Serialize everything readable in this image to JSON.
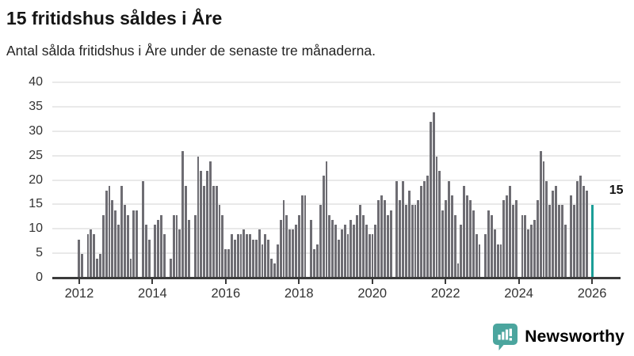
{
  "title": "15 fritidshus såldes i Åre",
  "subtitle": "Antal sålda fritidshus i Åre under de senaste tre månaderna.",
  "annotation": {
    "label": "15"
  },
  "branding": {
    "name": "Newsworthy",
    "icon": "newsworthy-bubble-chart-icon",
    "color": "#4BA59E"
  },
  "colors": {
    "bar": "#6E6D73",
    "highlight": "#1B9E97",
    "grid": "#E9E9E9",
    "axis": "#3B3B3B",
    "text": "#333333"
  },
  "chart_data": {
    "type": "bar",
    "title": "15 fritidshus såldes i Åre",
    "subtitle": "Antal sålda fritidshus i Åre under de senaste tre månaderna.",
    "unit": "sålda fritidshus per 3 månader",
    "x_start": "2012-01",
    "x_end": "2026-01",
    "x_tick_years": [
      2012,
      2014,
      2016,
      2018,
      2020,
      2022,
      2024,
      2026
    ],
    "ylim": [
      0,
      40
    ],
    "y_ticks": [
      0,
      5,
      10,
      15,
      20,
      25,
      30,
      35,
      40
    ],
    "grid": "horizontal",
    "highlight_last": true,
    "highlight_value": 15,
    "values_by_year": {
      "2012": [
        8,
        5,
        0,
        9,
        10,
        9,
        4,
        5,
        13,
        18,
        19,
        16
      ],
      "2013": [
        14,
        11,
        19,
        15,
        13,
        4,
        14,
        14,
        0,
        20,
        11,
        8
      ],
      "2014": [
        0,
        11,
        12,
        13,
        9,
        0,
        4,
        13,
        13,
        10,
        26,
        19
      ],
      "2015": [
        12,
        0,
        13,
        25,
        22,
        19,
        22,
        24,
        19,
        19,
        15,
        13
      ],
      "2016": [
        6,
        6,
        9,
        8,
        9,
        9,
        10,
        9,
        9,
        8,
        8,
        10
      ],
      "2017": [
        7,
        9,
        8,
        4,
        3,
        7,
        12,
        16,
        13,
        10,
        10,
        11
      ],
      "2018": [
        13,
        17,
        17,
        0,
        12,
        6,
        7,
        15,
        21,
        24,
        13,
        12
      ],
      "2019": [
        11,
        8,
        10,
        11,
        9,
        12,
        11,
        13,
        15,
        13,
        11,
        9
      ],
      "2020": [
        9,
        11,
        16,
        17,
        16,
        13,
        14,
        0,
        20,
        16,
        20,
        15
      ],
      "2021": [
        18,
        15,
        15,
        16,
        19,
        20,
        21,
        32,
        34,
        25,
        22,
        14
      ],
      "2022": [
        16,
        20,
        17,
        13,
        3,
        11,
        19,
        17,
        16,
        14,
        9,
        7
      ],
      "2023": [
        0,
        9,
        14,
        13,
        10,
        7,
        7,
        16,
        17,
        19,
        15,
        16
      ],
      "2024": [
        0,
        13,
        13,
        10,
        11,
        12,
        16,
        26,
        24,
        20,
        15,
        18
      ],
      "2025": [
        19,
        15,
        15,
        11,
        0,
        17,
        15,
        20,
        21,
        19,
        18,
        0
      ],
      "2026": [
        15
      ]
    }
  }
}
